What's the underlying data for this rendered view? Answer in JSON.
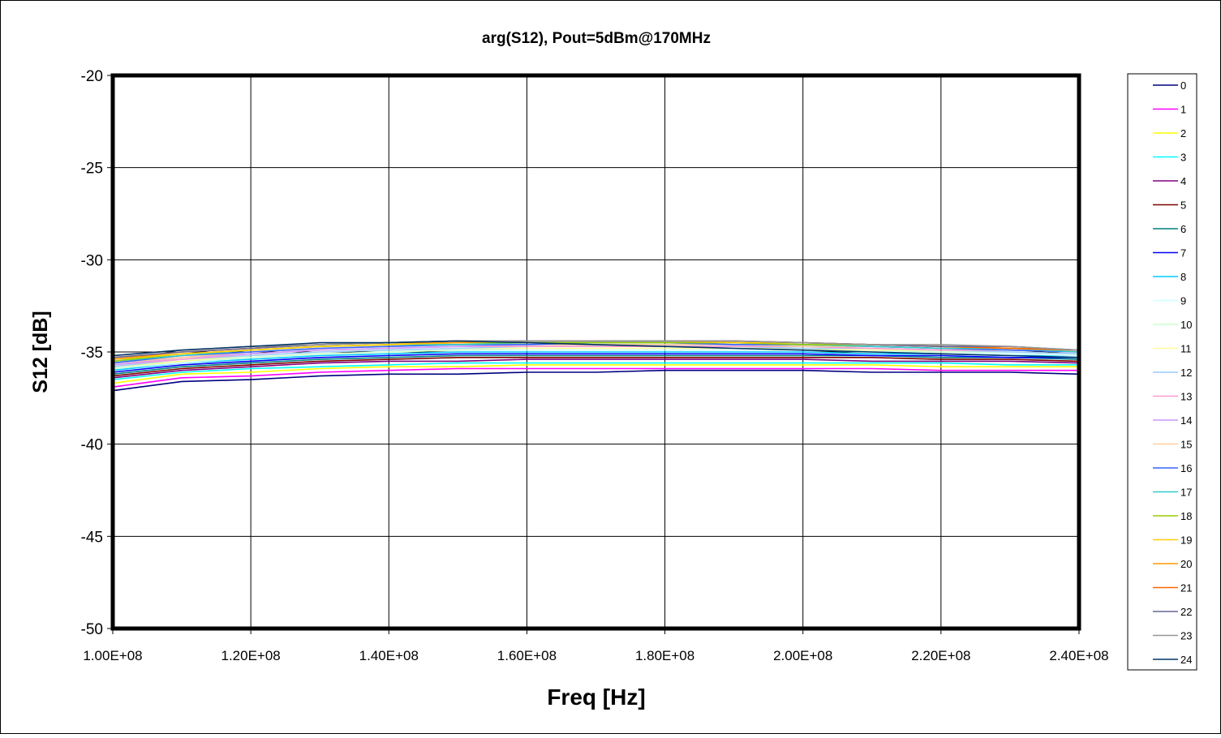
{
  "chart_data": {
    "type": "line",
    "title": "arg(S12), Pout=5dBm@170MHz",
    "xlabel": "Freq [Hz]",
    "ylabel": "S12 [dB]",
    "xlim": [
      100000000,
      240000000
    ],
    "ylim": [
      -50,
      -20
    ],
    "x_ticks": [
      {
        "value": 100000000,
        "label": "1.00E+08"
      },
      {
        "value": 120000000,
        "label": "1.20E+08"
      },
      {
        "value": 140000000,
        "label": "1.40E+08"
      },
      {
        "value": 160000000,
        "label": "1.60E+08"
      },
      {
        "value": 180000000,
        "label": "1.80E+08"
      },
      {
        "value": 200000000,
        "label": "2.00E+08"
      },
      {
        "value": 220000000,
        "label": "2.20E+08"
      },
      {
        "value": 240000000,
        "label": "2.40E+08"
      }
    ],
    "y_ticks": [
      {
        "value": -20,
        "label": "-20"
      },
      {
        "value": -25,
        "label": "-25"
      },
      {
        "value": -30,
        "label": "-30"
      },
      {
        "value": -35,
        "label": "-35"
      },
      {
        "value": -40,
        "label": "-40"
      },
      {
        "value": -45,
        "label": "-45"
      },
      {
        "value": -50,
        "label": "-50"
      }
    ],
    "grid": true,
    "legend_position": "right",
    "x": [
      100000000,
      110000000,
      120000000,
      130000000,
      140000000,
      150000000,
      160000000,
      170000000,
      180000000,
      190000000,
      200000000,
      210000000,
      220000000,
      230000000,
      240000000
    ],
    "series": [
      {
        "name": "0",
        "color": "#000080",
        "values": [
          -37.1,
          -36.6,
          -36.5,
          -36.3,
          -36.2,
          -36.2,
          -36.1,
          -36.1,
          -36.0,
          -36.0,
          -36.0,
          -36.1,
          -36.1,
          -36.1,
          -36.2
        ]
      },
      {
        "name": "1",
        "color": "#FF00FF",
        "values": [
          -36.9,
          -36.4,
          -36.3,
          -36.1,
          -36.0,
          -35.9,
          -35.9,
          -35.9,
          -35.9,
          -35.9,
          -35.9,
          -35.9,
          -36.0,
          -36.0,
          -36.0
        ]
      },
      {
        "name": "2",
        "color": "#FFFF00",
        "values": [
          -36.7,
          -36.2,
          -36.1,
          -35.9,
          -35.8,
          -35.8,
          -35.7,
          -35.7,
          -35.7,
          -35.7,
          -35.7,
          -35.7,
          -35.8,
          -35.8,
          -35.8
        ]
      },
      {
        "name": "3",
        "color": "#00FFFF",
        "values": [
          -36.5,
          -36.1,
          -35.9,
          -35.8,
          -35.7,
          -35.6,
          -35.6,
          -35.6,
          -35.6,
          -35.6,
          -35.6,
          -35.6,
          -35.6,
          -35.7,
          -35.7
        ]
      },
      {
        "name": "4",
        "color": "#800080",
        "values": [
          -36.4,
          -36.0,
          -35.8,
          -35.6,
          -35.5,
          -35.5,
          -35.4,
          -35.4,
          -35.4,
          -35.4,
          -35.4,
          -35.5,
          -35.5,
          -35.5,
          -35.6
        ]
      },
      {
        "name": "5",
        "color": "#800000",
        "values": [
          -36.3,
          -35.9,
          -35.7,
          -35.5,
          -35.4,
          -35.3,
          -35.3,
          -35.3,
          -35.3,
          -35.3,
          -35.3,
          -35.3,
          -35.4,
          -35.4,
          -35.5
        ]
      },
      {
        "name": "6",
        "color": "#008080",
        "values": [
          -36.2,
          -35.8,
          -35.6,
          -35.4,
          -35.3,
          -35.2,
          -35.2,
          -35.2,
          -35.2,
          -35.2,
          -35.2,
          -35.2,
          -35.3,
          -35.3,
          -35.4
        ]
      },
      {
        "name": "7",
        "color": "#0000FF",
        "values": [
          -36.1,
          -35.7,
          -35.5,
          -35.3,
          -35.2,
          -35.1,
          -35.1,
          -35.1,
          -35.1,
          -35.1,
          -35.1,
          -35.2,
          -35.2,
          -35.3,
          -35.3
        ]
      },
      {
        "name": "8",
        "color": "#00CCFF",
        "values": [
          -36.0,
          -35.6,
          -35.4,
          -35.2,
          -35.1,
          -35.0,
          -35.0,
          -35.0,
          -35.0,
          -35.0,
          -35.0,
          -35.1,
          -35.1,
          -35.2,
          -35.2
        ]
      },
      {
        "name": "9",
        "color": "#CCFFFF",
        "values": [
          -35.9,
          -35.6,
          -35.3,
          -35.1,
          -35.0,
          -34.9,
          -34.9,
          -34.9,
          -34.9,
          -34.9,
          -34.9,
          -35.0,
          -35.0,
          -35.1,
          -35.2
        ]
      },
      {
        "name": "10",
        "color": "#CCFFCC",
        "values": [
          -35.9,
          -35.5,
          -35.3,
          -35.1,
          -35.0,
          -34.9,
          -34.8,
          -34.8,
          -34.8,
          -34.8,
          -34.9,
          -34.9,
          -35.0,
          -35.0,
          -35.1
        ]
      },
      {
        "name": "11",
        "color": "#FFFF99",
        "values": [
          -35.8,
          -35.5,
          -35.2,
          -35.0,
          -34.9,
          -34.8,
          -34.8,
          -34.8,
          -34.8,
          -34.8,
          -34.8,
          -34.9,
          -34.9,
          -35.0,
          -35.1
        ]
      },
      {
        "name": "12",
        "color": "#99CCFF",
        "values": [
          -35.8,
          -35.4,
          -35.2,
          -35.0,
          -34.9,
          -34.8,
          -34.7,
          -34.7,
          -34.7,
          -34.7,
          -34.8,
          -34.8,
          -34.9,
          -35.0,
          -35.1
        ]
      },
      {
        "name": "13",
        "color": "#FF99CC",
        "values": [
          -35.7,
          -35.4,
          -35.1,
          -34.9,
          -34.8,
          -34.7,
          -34.7,
          -34.7,
          -34.7,
          -34.7,
          -34.7,
          -34.8,
          -34.9,
          -34.9,
          -35.0
        ]
      },
      {
        "name": "14",
        "color": "#CC99FF",
        "values": [
          -35.7,
          -35.3,
          -35.1,
          -34.9,
          -34.8,
          -34.7,
          -34.6,
          -34.6,
          -34.6,
          -34.6,
          -34.7,
          -34.7,
          -34.8,
          -34.9,
          -35.0
        ]
      },
      {
        "name": "15",
        "color": "#FFCC99",
        "values": [
          -35.6,
          -35.3,
          -35.0,
          -34.8,
          -34.7,
          -34.6,
          -34.6,
          -34.6,
          -34.6,
          -34.6,
          -34.7,
          -34.7,
          -34.8,
          -34.9,
          -35.0
        ]
      },
      {
        "name": "16",
        "color": "#3366FF",
        "values": [
          -35.6,
          -35.2,
          -35.0,
          -34.8,
          -34.7,
          -34.6,
          -34.6,
          -34.5,
          -34.5,
          -34.6,
          -34.6,
          -34.7,
          -34.8,
          -34.9,
          -35.0
        ]
      },
      {
        "name": "17",
        "color": "#33CCCC",
        "values": [
          -35.5,
          -35.2,
          -34.9,
          -34.7,
          -34.6,
          -34.6,
          -34.5,
          -34.5,
          -34.5,
          -34.5,
          -34.6,
          -34.7,
          -34.8,
          -34.8,
          -35.0
        ]
      },
      {
        "name": "18",
        "color": "#99CC00",
        "values": [
          -35.5,
          -35.1,
          -34.9,
          -34.7,
          -34.6,
          -34.5,
          -34.5,
          -34.5,
          -34.5,
          -34.5,
          -34.6,
          -34.6,
          -34.7,
          -34.8,
          -34.9
        ]
      },
      {
        "name": "19",
        "color": "#FFCC00",
        "values": [
          -35.4,
          -35.1,
          -34.9,
          -34.7,
          -34.6,
          -34.5,
          -34.4,
          -34.4,
          -34.4,
          -34.5,
          -34.5,
          -34.6,
          -34.7,
          -34.8,
          -34.9
        ]
      },
      {
        "name": "20",
        "color": "#FF9900",
        "values": [
          -35.4,
          -35.0,
          -34.8,
          -34.6,
          -34.5,
          -34.5,
          -34.4,
          -34.4,
          -34.4,
          -34.4,
          -34.5,
          -34.6,
          -34.7,
          -34.8,
          -34.9
        ]
      },
      {
        "name": "21",
        "color": "#FF6600",
        "values": [
          -35.3,
          -35.0,
          -34.8,
          -34.6,
          -34.5,
          -34.4,
          -34.4,
          -34.4,
          -34.4,
          -34.4,
          -34.5,
          -34.6,
          -34.7,
          -34.8,
          -34.9
        ]
      },
      {
        "name": "22",
        "color": "#666699",
        "values": [
          -35.3,
          -35.0,
          -34.8,
          -34.6,
          -34.5,
          -34.4,
          -34.4,
          -34.4,
          -34.4,
          -34.4,
          -34.5,
          -34.6,
          -34.7,
          -34.7,
          -34.9
        ]
      },
      {
        "name": "23",
        "color": "#969696",
        "values": [
          -35.2,
          -34.9,
          -34.7,
          -34.6,
          -34.5,
          -34.4,
          -34.4,
          -34.4,
          -34.4,
          -34.4,
          -34.5,
          -34.6,
          -34.6,
          -34.7,
          -34.9
        ]
      },
      {
        "name": "24",
        "color": "#003366",
        "values": [
          -35.2,
          -34.9,
          -34.7,
          -34.5,
          -34.5,
          -34.4,
          -34.5,
          -34.6,
          -34.7,
          -34.8,
          -34.9,
          -35.0,
          -35.1,
          -35.2,
          -35.3
        ]
      }
    ]
  }
}
